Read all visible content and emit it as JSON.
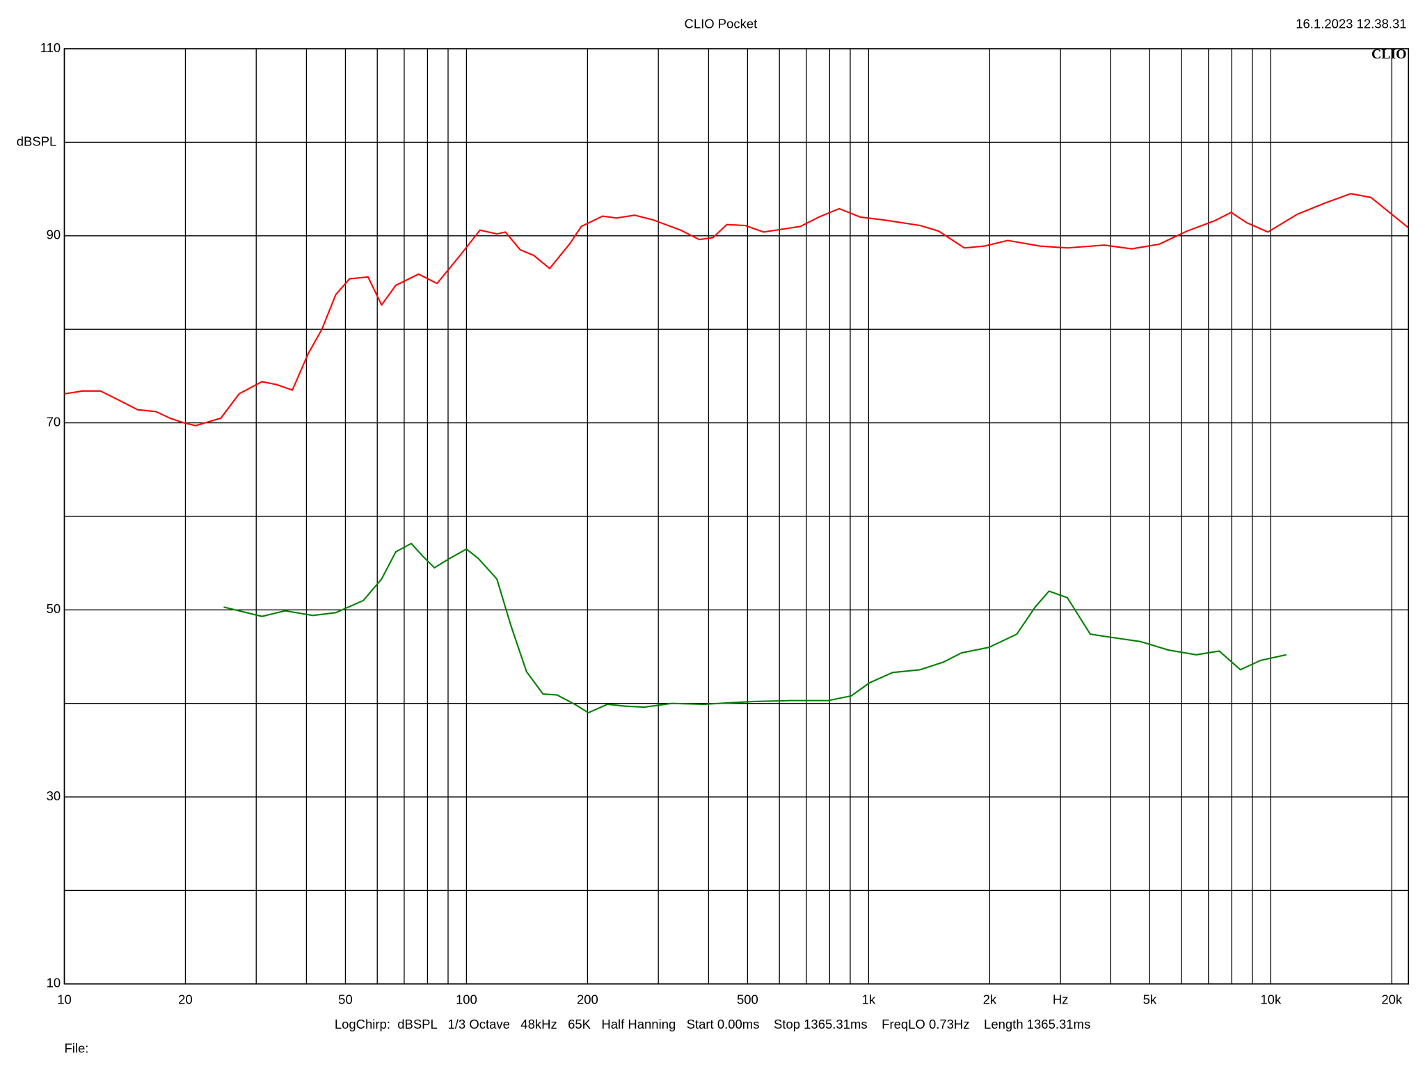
{
  "chart_data": {
    "type": "line",
    "title": "CLIO Pocket",
    "timestamp": "16.1.2023 12.38.31",
    "logo": "CLIO",
    "ylabel": "dBSPL",
    "info": "LogChirp:  dBSPL   1/3 Octave   48kHz   65K   Half Hanning   Start 0.00ms    Stop 1365.31ms    FreqLO 0.73Hz    Length 1365.31ms",
    "file_label": "File:",
    "xscale": "log",
    "grid": true,
    "xlim": [
      10,
      22000
    ],
    "ylim": [
      10,
      110
    ],
    "xticks": [
      10,
      20,
      50,
      100,
      200,
      500,
      {
        "value": 1000,
        "label": "1k"
      },
      {
        "value": 2000,
        "label": "2k"
      },
      {
        "value": 3000,
        "label": "Hz"
      },
      {
        "value": 5000,
        "label": "5k"
      },
      {
        "value": 10000,
        "label": "10k"
      },
      {
        "value": 20000,
        "label": "20k"
      }
    ],
    "xminorticks": [
      30,
      40,
      60,
      70,
      80,
      90,
      300,
      400,
      600,
      700,
      800,
      900,
      4000,
      6000,
      7000,
      8000,
      9000
    ],
    "yticks": [
      10,
      30,
      50,
      70,
      90,
      110
    ],
    "yminorticks": [
      20,
      40,
      60,
      80,
      100
    ],
    "series": [
      {
        "color": "#ff0000",
        "x": [
          10,
          11.1,
          12.3,
          13.7,
          15.2,
          16.9,
          18.3,
          19.8,
          21.2,
          23.2,
          24.5,
          27.2,
          31.0,
          33.6,
          36.9,
          38.3,
          40.4,
          43.7,
          47.3,
          51.2,
          56.9,
          61.5,
          66.7,
          76.0,
          84.5,
          96.4,
          108,
          119,
          125,
          136,
          147,
          161,
          181,
          193,
          218,
          236,
          262,
          291,
          341,
          379,
          410,
          444,
          493,
          548,
          609,
          677,
          752,
          845,
          953,
          1088,
          1343,
          1493,
          1730,
          1941,
          2218,
          2666,
          3120,
          3855,
          4510,
          5280,
          6190,
          7245,
          7971,
          8710,
          9840,
          11640,
          13640,
          15810,
          17750,
          20260,
          21930
        ],
        "values": [
          73.1,
          73.4,
          73.4,
          72.4,
          71.4,
          71.2,
          70.5,
          70.0,
          69.7,
          70.2,
          70.5,
          73.1,
          74.4,
          74.1,
          73.5,
          75.1,
          77.4,
          80.0,
          83.7,
          85.4,
          85.6,
          82.6,
          84.7,
          85.9,
          84.9,
          87.9,
          90.6,
          90.2,
          90.4,
          88.5,
          87.9,
          86.5,
          89.2,
          91.0,
          92.1,
          91.9,
          92.2,
          91.7,
          90.6,
          89.6,
          89.8,
          91.2,
          91.1,
          90.4,
          90.7,
          91.0,
          92.0,
          92.9,
          92.0,
          91.7,
          91.1,
          90.5,
          88.7,
          88.9,
          89.5,
          88.9,
          88.7,
          89.0,
          88.6,
          89.1,
          90.5,
          91.6,
          92.5,
          91.4,
          90.4,
          92.3,
          93.5,
          94.5,
          94.1,
          92.1,
          90.9
        ]
      },
      {
        "color": "#008000",
        "x": [
          24.9,
          31.0,
          35.4,
          41.5,
          47.3,
          55.4,
          61.5,
          66.7,
          72.9,
          78.0,
          83.2,
          90.0,
          100,
          107,
          119,
          129,
          141,
          155,
          168,
          186,
          201,
          224,
          249,
          277,
          324,
          389,
          468,
          520,
          642,
          793,
          905,
          1005,
          1147,
          1343,
          1532,
          1703,
          1994,
          2336,
          2595,
          2809,
          3120,
          3558,
          3954,
          4753,
          5570,
          6530,
          7447,
          8404,
          9440,
          10930
        ],
        "values": [
          50.3,
          49.3,
          49.9,
          49.4,
          49.7,
          51.0,
          53.3,
          56.2,
          57.1,
          55.7,
          54.5,
          55.4,
          56.5,
          55.5,
          53.3,
          48.3,
          43.4,
          41.0,
          40.9,
          39.9,
          39.0,
          39.9,
          39.7,
          39.6,
          40.0,
          39.9,
          40.1,
          40.2,
          40.3,
          40.3,
          40.8,
          42.2,
          43.3,
          43.6,
          44.4,
          45.4,
          46.0,
          47.4,
          50.3,
          52.0,
          51.3,
          47.4,
          47.1,
          46.6,
          45.7,
          45.2,
          45.6,
          43.6,
          44.6,
          45.2
        ]
      }
    ]
  }
}
